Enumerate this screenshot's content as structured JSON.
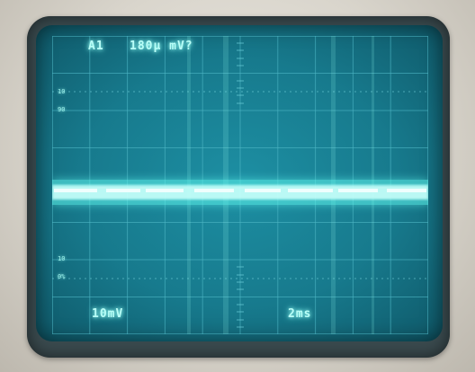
{
  "readouts": {
    "channel": "A1",
    "top_value": "180µ mV?",
    "volts_per_div": "10mV",
    "time_per_div": "2ms"
  },
  "trace": {
    "color": "#d7fffb",
    "glow_color": "#5ff7ee",
    "screen_color": "#177a8d"
  }
}
